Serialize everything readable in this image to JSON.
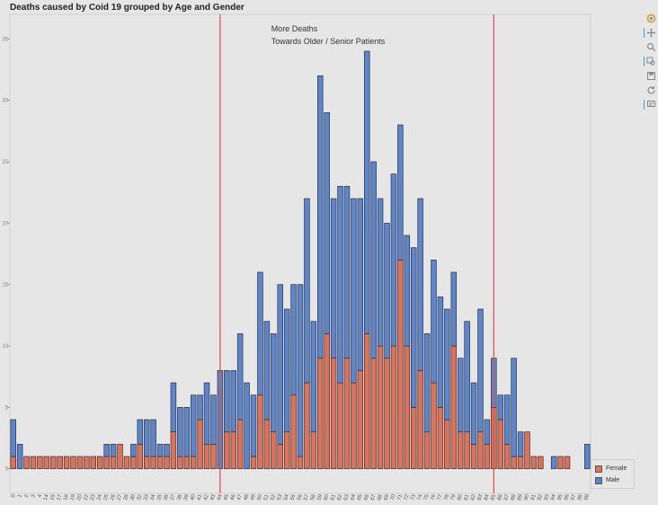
{
  "toolbar": {
    "tools": [
      {
        "icon": "bokeh-logo-icon"
      },
      {
        "icon": "pan-icon"
      },
      {
        "icon": "box-zoom-icon"
      },
      {
        "icon": "wheel-zoom-icon"
      },
      {
        "icon": "save-icon"
      },
      {
        "icon": "reset-icon"
      },
      {
        "icon": "hover-icon"
      }
    ]
  },
  "chart_data": {
    "type": "bar",
    "stacked": true,
    "title": "Deaths caused by Coid 19 grouped by Age and Gender",
    "annotation": [
      "More Deaths",
      "Towards Older / Senior Patients"
    ],
    "categories": [
      "0",
      "1",
      "2",
      "3",
      "4",
      "14",
      "15",
      "17",
      "18",
      "19",
      "20",
      "22",
      "23",
      "24",
      "25",
      "26",
      "27",
      "28",
      "30",
      "32",
      "33",
      "34",
      "35",
      "36",
      "37",
      "38",
      "39",
      "40",
      "41",
      "42",
      "43",
      "44",
      "45",
      "46",
      "47",
      "48",
      "49",
      "50",
      "51",
      "52",
      "53",
      "54",
      "55",
      "56",
      "57",
      "58",
      "59",
      "60",
      "61",
      "62",
      "63",
      "64",
      "65",
      "66",
      "67",
      "68",
      "69",
      "70",
      "71",
      "72",
      "73",
      "74",
      "75",
      "76",
      "77",
      "78",
      "79",
      "80",
      "81",
      "82",
      "83",
      "84",
      "85",
      "86",
      "87",
      "88",
      "89",
      "90",
      "91",
      "92",
      "93",
      "94",
      "95",
      "96",
      "97",
      "98",
      "99"
    ],
    "series": [
      {
        "name": "Female",
        "color": "#e07058",
        "values": [
          1,
          0,
          1,
          1,
          1,
          1,
          1,
          1,
          1,
          1,
          1,
          1,
          1,
          1,
          1,
          1,
          2,
          1,
          1,
          2,
          1,
          1,
          1,
          1,
          3,
          1,
          1,
          1,
          4,
          2,
          2,
          0,
          3,
          3,
          4,
          0,
          1,
          6,
          4,
          3,
          2,
          3,
          6,
          1,
          7,
          3,
          9,
          11,
          9,
          7,
          9,
          7,
          8,
          11,
          9,
          10,
          9,
          10,
          17,
          10,
          5,
          8,
          3,
          7,
          5,
          4,
          10,
          3,
          3,
          2,
          3,
          2,
          5,
          4,
          2,
          1,
          1,
          3,
          1,
          1,
          0,
          0,
          1,
          1,
          0,
          0,
          0
        ]
      },
      {
        "name": "Male",
        "color": "#5b86cf",
        "values": [
          3,
          2,
          0,
          0,
          0,
          0,
          0,
          0,
          0,
          0,
          0,
          0,
          0,
          0,
          1,
          1,
          0,
          0,
          1,
          2,
          3,
          3,
          1,
          1,
          4,
          4,
          4,
          5,
          2,
          5,
          4,
          8,
          5,
          5,
          7,
          7,
          5,
          10,
          8,
          8,
          13,
          10,
          9,
          14,
          15,
          9,
          23,
          18,
          13,
          16,
          14,
          15,
          14,
          23,
          16,
          12,
          11,
          14,
          11,
          9,
          13,
          14,
          8,
          10,
          9,
          9,
          6,
          6,
          9,
          5,
          10,
          2,
          4,
          2,
          4,
          8,
          2,
          0,
          0,
          0,
          0,
          1,
          0,
          0,
          0,
          0,
          2
        ]
      }
    ],
    "ylim": [
      -2,
      37
    ],
    "yticks": [
      0,
      5,
      10,
      15,
      20,
      25,
      30,
      35
    ],
    "reference_lines": [
      {
        "category": "44",
        "color": "#d9534f"
      },
      {
        "category": "85",
        "color": "#d9534f"
      }
    ],
    "legend_position": "bottom-right",
    "grid": false
  }
}
